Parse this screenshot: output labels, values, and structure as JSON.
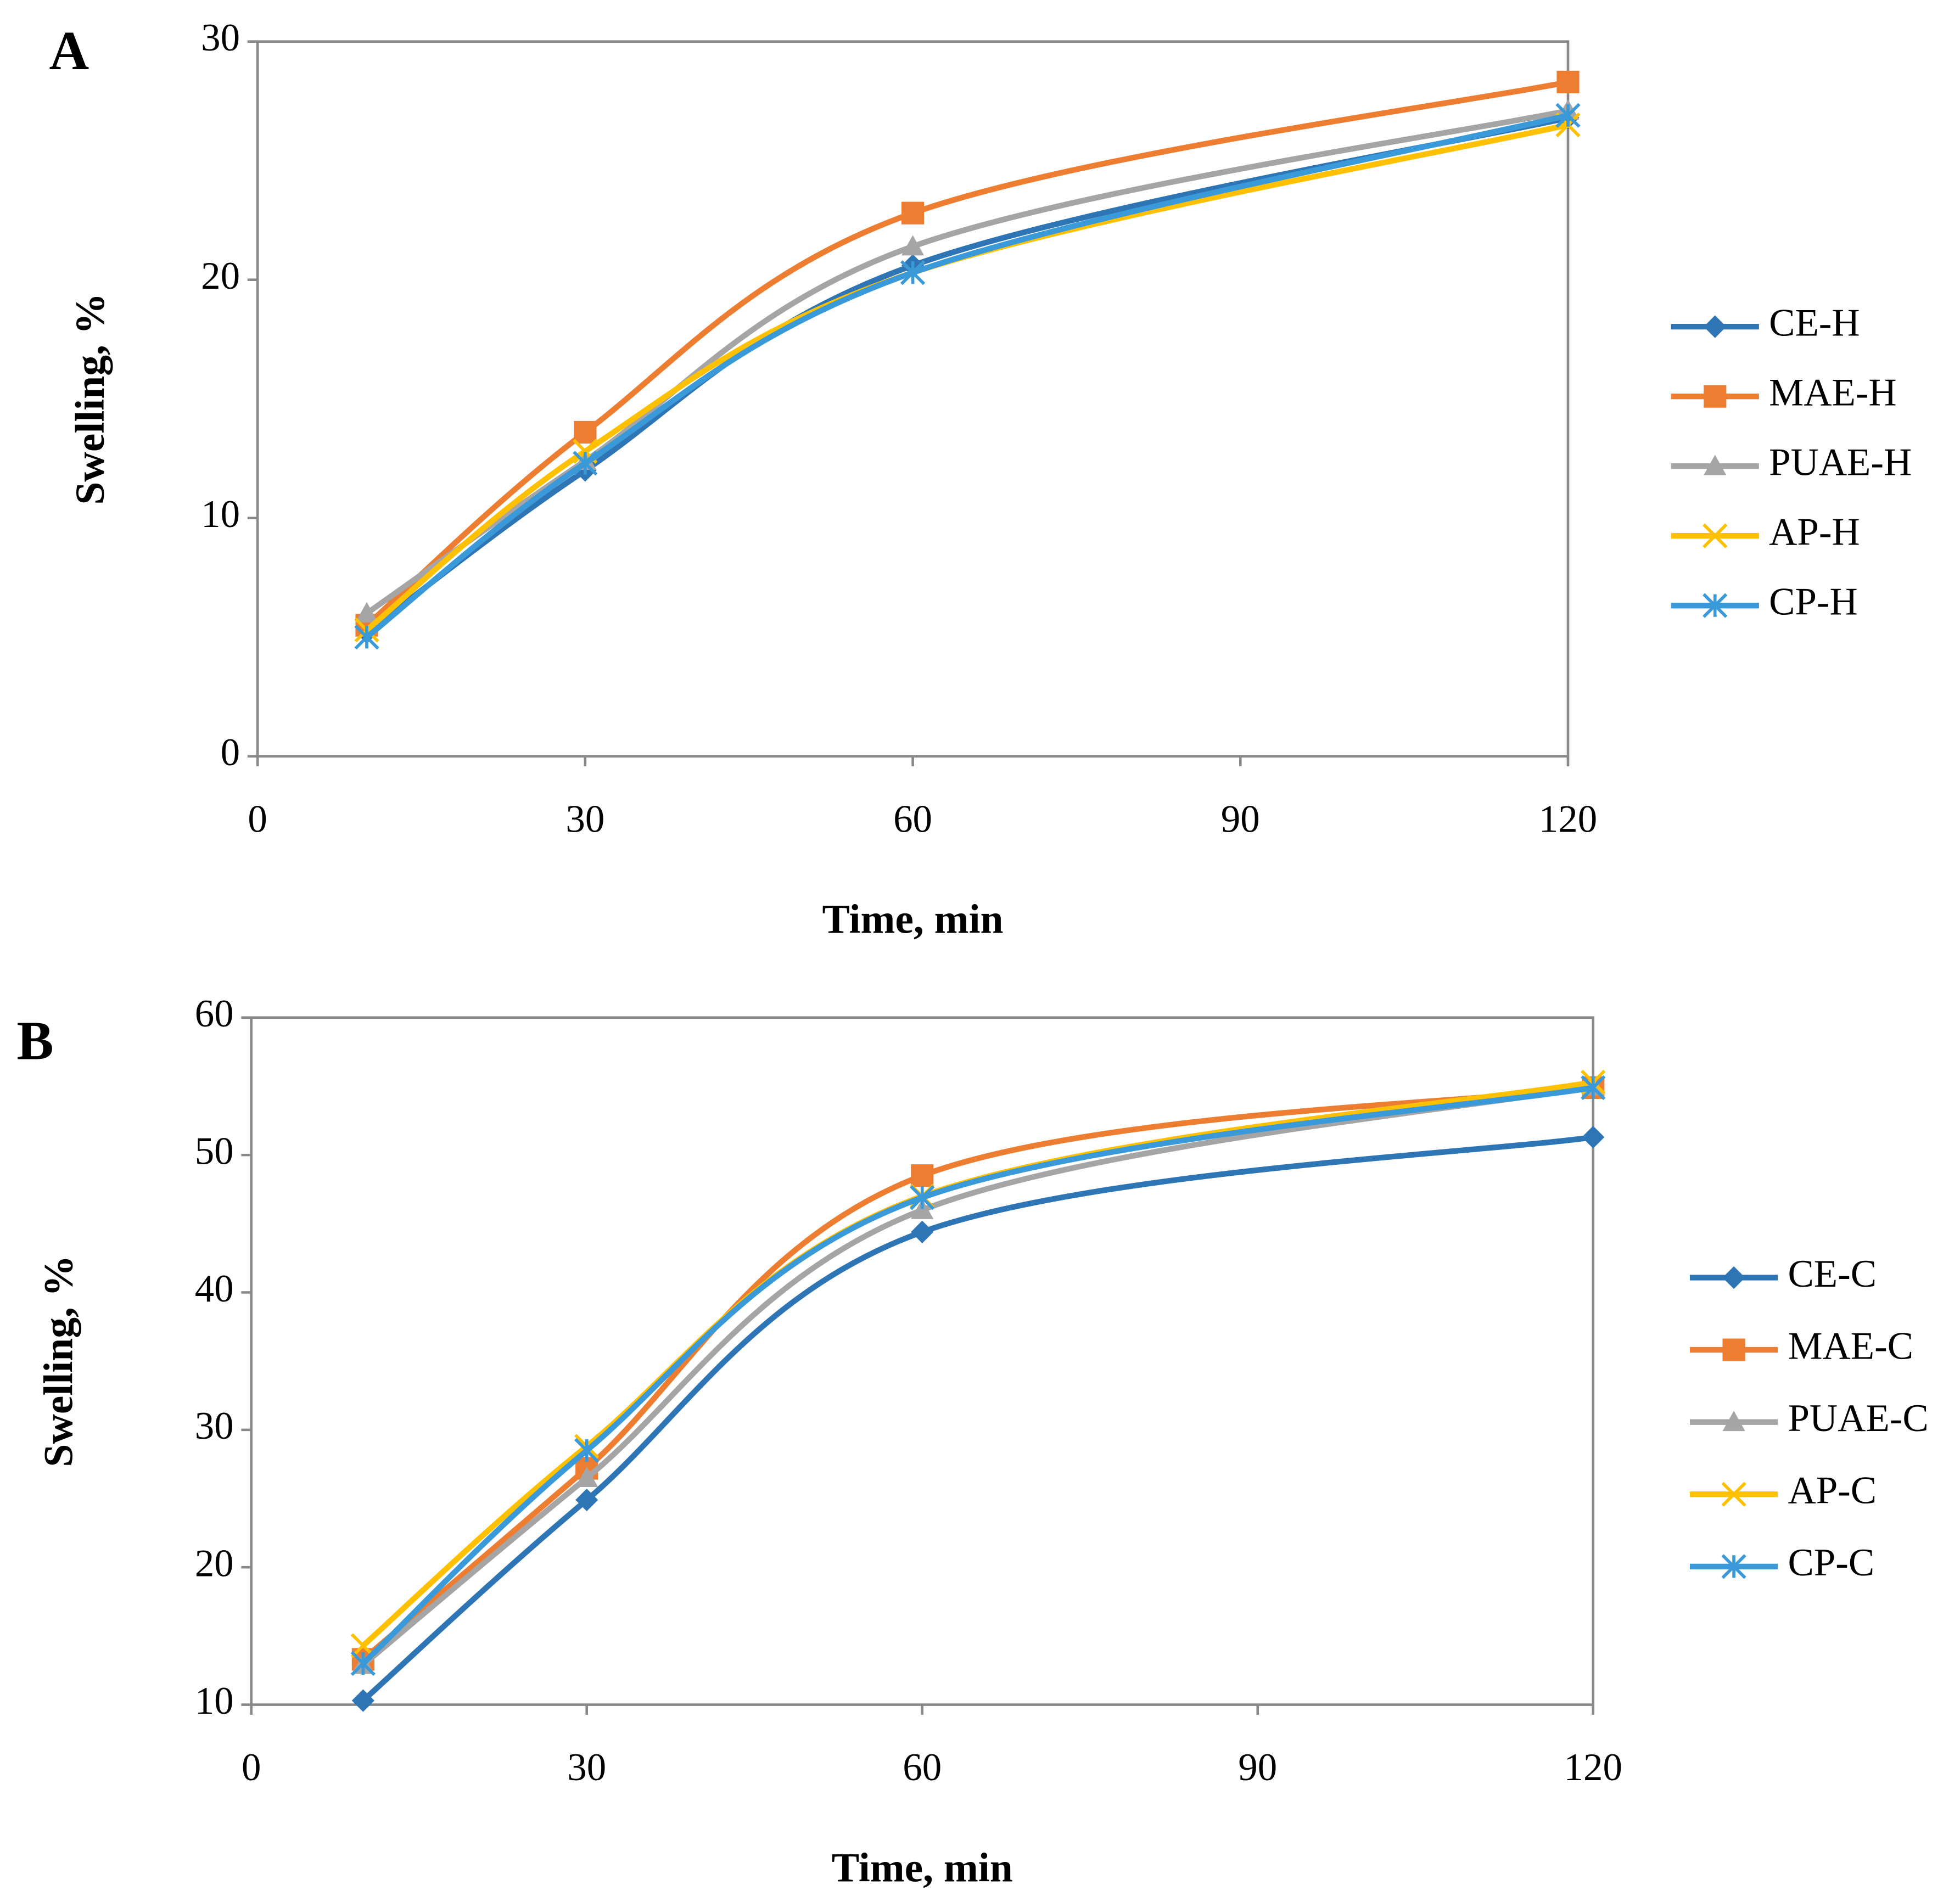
{
  "chart_data": [
    {
      "type": "line",
      "panel_label": "A",
      "x_label": "Time, min",
      "y_label": "Swelling, %",
      "x": [
        10,
        30,
        60,
        120
      ],
      "xlim": [
        0,
        120
      ],
      "xticks": [
        0,
        30,
        60,
        90,
        120
      ],
      "ylim": [
        0,
        30
      ],
      "yticks": [
        0,
        10,
        20,
        30
      ],
      "smooth": true,
      "legend": "right",
      "series": [
        {
          "name": "CE-H",
          "color": "#2e75b6",
          "marker": "diamond",
          "values": [
            5.2,
            12.0,
            20.6,
            26.8
          ]
        },
        {
          "name": "MAE-H",
          "color": "#ed7d31",
          "marker": "square",
          "values": [
            5.5,
            13.6,
            22.8,
            28.3
          ]
        },
        {
          "name": "PUAE-H",
          "color": "#a5a5a5",
          "marker": "triangle",
          "values": [
            6.0,
            12.4,
            21.4,
            27.1
          ]
        },
        {
          "name": "AP-H",
          "color": "#ffc000",
          "marker": "x",
          "values": [
            5.3,
            12.8,
            20.3,
            26.5
          ]
        },
        {
          "name": "CP-H",
          "color": "#3a9ad9",
          "marker": "star",
          "values": [
            5.0,
            12.3,
            20.3,
            26.9
          ]
        }
      ]
    },
    {
      "type": "line",
      "panel_label": "B",
      "x_label": "Time, min",
      "y_label": "Swelling, %",
      "x": [
        10,
        30,
        60,
        120
      ],
      "xlim": [
        0,
        120
      ],
      "xticks": [
        0,
        30,
        60,
        90,
        120
      ],
      "ylim": [
        10,
        60
      ],
      "yticks": [
        10,
        20,
        30,
        40,
        50,
        60
      ],
      "smooth": true,
      "legend": "right",
      "series": [
        {
          "name": "CE-C",
          "color": "#2e75b6",
          "marker": "diamond",
          "values": [
            10.3,
            24.9,
            44.4,
            51.3
          ]
        },
        {
          "name": "MAE-C",
          "color": "#ed7d31",
          "marker": "square",
          "values": [
            13.3,
            27.2,
            48.5,
            54.9
          ]
        },
        {
          "name": "PUAE-C",
          "color": "#a5a5a5",
          "marker": "triangle",
          "values": [
            12.9,
            26.5,
            46.0,
            55.0
          ]
        },
        {
          "name": "AP-C",
          "color": "#ffc000",
          "marker": "x",
          "values": [
            14.3,
            28.8,
            47.0,
            55.3
          ]
        },
        {
          "name": "CP-C",
          "color": "#3a9ad9",
          "marker": "star",
          "values": [
            13.0,
            28.5,
            46.9,
            54.9
          ]
        }
      ]
    }
  ]
}
